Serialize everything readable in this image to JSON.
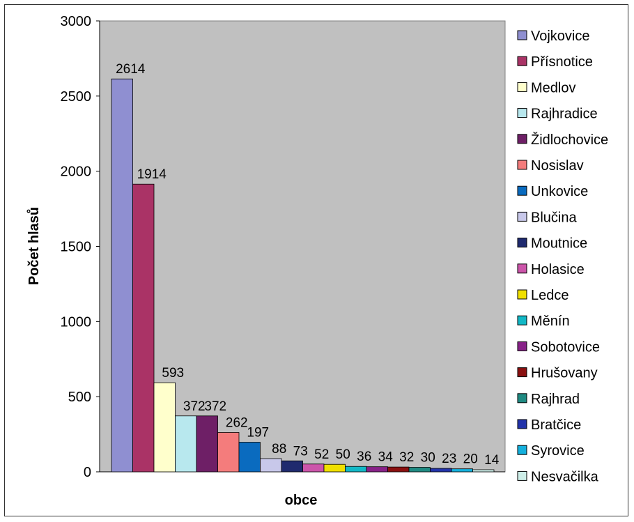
{
  "chart_data": {
    "type": "bar",
    "xlabel": "obce",
    "ylabel": "Počet hlasů",
    "ylim": [
      0,
      3000
    ],
    "yticks": [
      0,
      500,
      1000,
      1500,
      2000,
      2500,
      3000
    ],
    "grid": false,
    "legend_position": "right",
    "plot_background": "#c0c0c0",
    "series": [
      {
        "name": "Vojkovice",
        "value": 2614,
        "color": "#8f8fd1"
      },
      {
        "name": "Přísnotice",
        "value": 1914,
        "color": "#aa3366"
      },
      {
        "name": "Medlov",
        "value": 593,
        "color": "#ffffcc"
      },
      {
        "name": "Rajhradice",
        "value": 372,
        "color": "#b8e8ee"
      },
      {
        "name": "Židlochovice",
        "value": 372,
        "color": "#6e1f66"
      },
      {
        "name": "Nosislav",
        "value": 262,
        "color": "#f47c7c"
      },
      {
        "name": "Unkovice",
        "value": 197,
        "color": "#0a6bbf"
      },
      {
        "name": "Blučina",
        "value": 88,
        "color": "#c8c8ea"
      },
      {
        "name": "Moutnice",
        "value": 73,
        "color": "#1f2a6e"
      },
      {
        "name": "Holasice",
        "value": 52,
        "color": "#cc55aa"
      },
      {
        "name": "Ledce",
        "value": 50,
        "color": "#f0e000"
      },
      {
        "name": "Měnín",
        "value": 36,
        "color": "#12b8c6"
      },
      {
        "name": "Sobotovice",
        "value": 34,
        "color": "#882288"
      },
      {
        "name": "Hrušovany",
        "value": 32,
        "color": "#8a1010"
      },
      {
        "name": "Rajhrad",
        "value": 30,
        "color": "#1f8a82"
      },
      {
        "name": "Bratčice",
        "value": 23,
        "color": "#2233aa"
      },
      {
        "name": "Syrovice",
        "value": 20,
        "color": "#14b0dd"
      },
      {
        "name": "Nesvačilka",
        "value": 14,
        "color": "#cdeee8"
      }
    ]
  }
}
